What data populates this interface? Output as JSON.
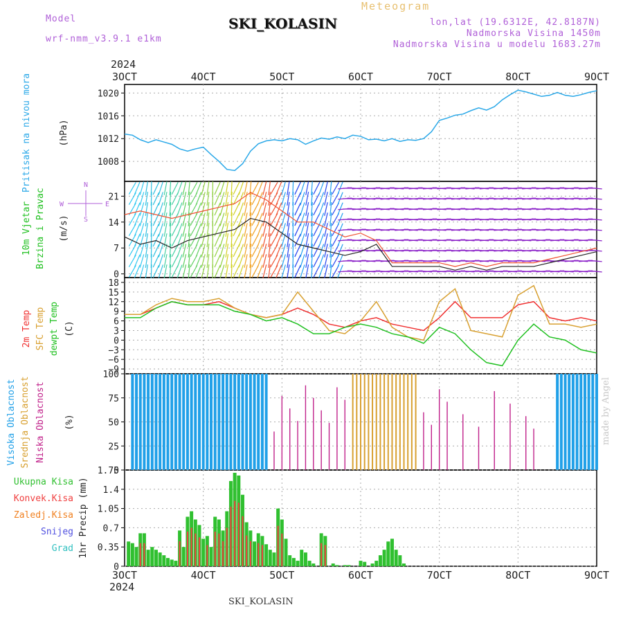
{
  "header": {
    "model_label": "Model",
    "model_name": "wrf-nmm_v3.9.1 e1km",
    "title": "SKI_KOLASIN",
    "meteogram": "Meteogram",
    "lonlat": "lon,lat (19.6312E, 42.8187N)",
    "altitude": "Nadmorska Visina 1450m",
    "model_altitude": "Nadmorska Visina u modelu 1683.27m",
    "year": "2024",
    "footer": "SKI_KOLASIN",
    "watermark": "made by Angel"
  },
  "colors": {
    "pressure": "#2aa8e8",
    "temp2m": "#f03030",
    "sfc": "#d8a030",
    "dewpt": "#20c020",
    "high_cloud": "#20a0e8",
    "mid_cloud": "#d8a030",
    "low_cloud": "#c0208a",
    "total_precip": "#30c030",
    "conv_precip": "#f04040",
    "frozen_precip": "#f08020",
    "snow": "#5050e0",
    "hail": "#30c0c0"
  },
  "chart_data": [
    {
      "type": "line",
      "name": "pressure",
      "x_ticks": [
        "3OCT",
        "4OCT",
        "5OCT",
        "6OCT",
        "7OCT",
        "8OCT",
        "9OCT"
      ],
      "y_ticks": [
        1008,
        1012,
        1016,
        1020
      ],
      "ylim": [
        1004.5,
        1021.5
      ],
      "ylabel": "(hPa)",
      "label": "Pritisak na nivou mora",
      "x": [
        0,
        0.1,
        0.2,
        0.3,
        0.4,
        0.5,
        0.6,
        0.7,
        0.8,
        0.9,
        1.0,
        1.1,
        1.2,
        1.3,
        1.4,
        1.5,
        1.6,
        1.7,
        1.8,
        1.9,
        2.0,
        2.1,
        2.2,
        2.3,
        2.4,
        2.5,
        2.6,
        2.7,
        2.8,
        2.9,
        3.0,
        3.1,
        3.2,
        3.3,
        3.4,
        3.5,
        3.6,
        3.7,
        3.8,
        3.9,
        4.0,
        4.1,
        4.2,
        4.3,
        4.4,
        4.5,
        4.6,
        4.7,
        4.8,
        4.9,
        5.0,
        5.1,
        5.2,
        5.3,
        5.4,
        5.5,
        5.6,
        5.7,
        5.8,
        5.9,
        6.0
      ],
      "values": [
        1012.8,
        1012.6,
        1011.8,
        1011.3,
        1011.8,
        1011.4,
        1011.0,
        1010.2,
        1009.8,
        1010.2,
        1010.5,
        1009.2,
        1008.0,
        1006.6,
        1006.4,
        1007.6,
        1009.8,
        1011.1,
        1011.6,
        1011.8,
        1011.6,
        1012.0,
        1011.8,
        1011.0,
        1011.6,
        1012.1,
        1011.9,
        1012.3,
        1012.0,
        1012.6,
        1012.4,
        1011.8,
        1011.9,
        1011.6,
        1012.0,
        1011.5,
        1011.8,
        1011.7,
        1012.0,
        1013.2,
        1015.2,
        1015.6,
        1016.1,
        1016.3,
        1016.9,
        1017.4,
        1017.0,
        1017.6,
        1018.8,
        1019.7,
        1020.5,
        1020.2,
        1019.8,
        1019.4,
        1019.6,
        1020.1,
        1019.6,
        1019.4,
        1019.7,
        1020.1,
        1020.4
      ]
    },
    {
      "type": "line",
      "name": "wind",
      "ylim": [
        -1,
        25
      ],
      "y_ticks": [
        0,
        7,
        14,
        21
      ],
      "ylabel": "(m/s)",
      "label": [
        "10m Vjetar",
        "Brzina i Pravac"
      ],
      "compass": {
        "n": "N",
        "w": "W",
        "e": "E",
        "s": "S"
      },
      "x": [
        0,
        0.2,
        0.4,
        0.6,
        0.8,
        1.0,
        1.2,
        1.4,
        1.6,
        1.8,
        2.0,
        2.2,
        2.4,
        2.6,
        2.8,
        3.0,
        3.2,
        3.4,
        3.6,
        3.8,
        4.0,
        4.2,
        4.4,
        4.6,
        4.8,
        5.0,
        5.2,
        5.4,
        5.6,
        5.8,
        6.0
      ],
      "speed": [
        10,
        8,
        9,
        7,
        9,
        10,
        11,
        12,
        15,
        14,
        11,
        8,
        7,
        6,
        5,
        6,
        8,
        2,
        2,
        2,
        2,
        1,
        2,
        1,
        2,
        2,
        2,
        3,
        4,
        5,
        6
      ],
      "gust": [
        16,
        17,
        16,
        15,
        16,
        17,
        18,
        19,
        22,
        20,
        17,
        14,
        14,
        12,
        10,
        11,
        9,
        3,
        3,
        3,
        3,
        2,
        3,
        2,
        3,
        3,
        3,
        4,
        5,
        6,
        7
      ]
    },
    {
      "type": "line",
      "name": "temperature",
      "ylim": [
        -10.5,
        19.5
      ],
      "y_ticks": [
        18,
        15,
        12,
        9,
        6,
        3,
        0,
        -3,
        -6,
        -9
      ],
      "ylabel": "(C)",
      "label": [
        "2m Temp",
        "SFC Temp",
        "dewpt Temp"
      ],
      "x": [
        0,
        0.2,
        0.4,
        0.6,
        0.8,
        1.0,
        1.2,
        1.4,
        1.6,
        1.8,
        2.0,
        2.2,
        2.4,
        2.6,
        2.8,
        3.0,
        3.2,
        3.4,
        3.6,
        3.8,
        4.0,
        4.2,
        4.4,
        4.6,
        4.8,
        5.0,
        5.2,
        5.4,
        5.6,
        5.8,
        6.0
      ],
      "series": [
        {
          "name": "2m Temp",
          "values": [
            8,
            8,
            10,
            12,
            11,
            11,
            12,
            10,
            8,
            7,
            8,
            10,
            8,
            5,
            4,
            6,
            7,
            5,
            4,
            3,
            7,
            12,
            7,
            7,
            7,
            11,
            12,
            7,
            6,
            7,
            6
          ]
        },
        {
          "name": "SFC Temp",
          "values": [
            8,
            8,
            11,
            13,
            12,
            12,
            13,
            10,
            8,
            7,
            8,
            15,
            9,
            3,
            2,
            6,
            12,
            4,
            1,
            0,
            12,
            16,
            3,
            2,
            1,
            14,
            17,
            5,
            5,
            4,
            5
          ]
        },
        {
          "name": "dewpt Temp",
          "values": [
            7,
            7,
            10,
            12,
            11,
            11,
            11,
            9,
            8,
            6,
            7,
            5,
            2,
            2,
            4,
            5,
            4,
            2,
            1,
            -1,
            4,
            2,
            -3,
            -7,
            -8,
            0,
            5,
            1,
            0,
            -3,
            -4
          ]
        }
      ]
    },
    {
      "type": "bar",
      "name": "cloud",
      "ylim": [
        0,
        100
      ],
      "y_ticks": [
        0,
        25,
        50,
        75,
        100
      ],
      "ylabel": "(%)",
      "label": [
        "Visoka Oblacnost",
        "Srednja Oblacnost",
        "Niska Oblacnost"
      ],
      "high_x": [
        0.1,
        0.15,
        0.2,
        0.25,
        0.3,
        0.35,
        0.4,
        0.45,
        0.5,
        0.55,
        0.6,
        0.65,
        0.7,
        0.75,
        0.8,
        0.85,
        0.9,
        0.95,
        1.0,
        1.05,
        1.1,
        1.15,
        1.2,
        1.25,
        1.3,
        1.35,
        1.4,
        1.45,
        1.5,
        1.55,
        1.6,
        1.65,
        1.7,
        1.75,
        1.8,
        5.5,
        5.55,
        5.6,
        5.65,
        5.7,
        5.75,
        5.8,
        5.85,
        5.9,
        5.95,
        6.0
      ],
      "mid_x": [
        2.9,
        2.95,
        3.0,
        3.05,
        3.1,
        3.15,
        3.2,
        3.25,
        3.3,
        3.35,
        3.4,
        3.45,
        3.5,
        3.55,
        3.6,
        3.65,
        3.7
      ],
      "low_x": [
        1.9,
        2.0,
        2.1,
        2.2,
        2.3,
        2.4,
        2.5,
        2.6,
        2.7,
        2.8,
        3.8,
        3.9,
        4.0,
        4.1,
        4.3,
        4.5,
        4.7,
        4.9,
        5.1,
        5.2
      ]
    },
    {
      "type": "bar",
      "name": "precip",
      "ylim": [
        0,
        1.75
      ],
      "y_ticks": [
        0,
        0.35,
        0.7,
        1.05,
        1.4,
        1.75
      ],
      "ylabel": "1hr Precip (mm)",
      "series_names": [
        "Ukupna Kisa",
        "Konvek.Kisa",
        "Zaledj.Kisa",
        "Snijeg",
        "Grad"
      ],
      "x_ticks": [
        "3OCT",
        "4OCT",
        "5OCT",
        "6OCT",
        "7OCT",
        "8OCT",
        "9OCT"
      ],
      "values": [
        0.45,
        0.42,
        0.35,
        0.6,
        0.6,
        0.3,
        0.35,
        0.3,
        0.25,
        0.2,
        0.15,
        0.12,
        0.1,
        0.65,
        0.35,
        0.9,
        1.0,
        0.85,
        0.75,
        0.5,
        0.55,
        0.35,
        0.9,
        0.85,
        0.65,
        1.0,
        1.55,
        1.7,
        1.65,
        1.3,
        0.8,
        0.65,
        0.45,
        0.6,
        0.55,
        0.4,
        0.3,
        0.25,
        1.05,
        0.85,
        0.5,
        0.2,
        0.15,
        0.1,
        0.3,
        0.25,
        0.1,
        0.05,
        0.6,
        0.55,
        0.05,
        0.02,
        0.02,
        0.02,
        0.1,
        0.08,
        0.05,
        0.1,
        0.2,
        0.3,
        0.45,
        0.5,
        0.3,
        0.2,
        0.05
      ],
      "values_x": [
        0.05,
        0.1,
        0.15,
        0.2,
        0.25,
        0.3,
        0.35,
        0.4,
        0.45,
        0.5,
        0.55,
        0.6,
        0.65,
        0.7,
        0.75,
        0.8,
        0.85,
        0.9,
        0.95,
        1.0,
        1.05,
        1.1,
        1.15,
        1.2,
        1.25,
        1.3,
        1.35,
        1.4,
        1.45,
        1.5,
        1.55,
        1.6,
        1.65,
        1.7,
        1.75,
        1.8,
        1.85,
        1.9,
        1.95,
        2.0,
        2.05,
        2.1,
        2.15,
        2.2,
        2.25,
        2.3,
        2.35,
        2.4,
        2.5,
        2.55,
        2.65,
        2.7,
        2.8,
        2.85,
        3.0,
        3.05,
        3.15,
        3.2,
        3.25,
        3.3,
        3.35,
        3.4,
        3.45,
        3.5,
        3.55
      ]
    }
  ]
}
